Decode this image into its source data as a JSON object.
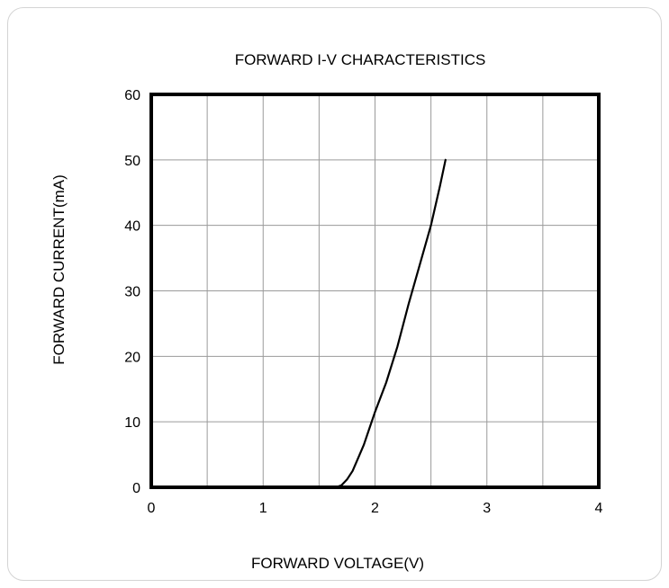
{
  "chart_data": {
    "type": "line",
    "title": "FORWARD I-V CHARACTERISTICS",
    "xlabel": "FORWARD VOLTAGE(V)",
    "ylabel": "FORWARD CURRENT(mA)",
    "xlim": [
      0,
      4
    ],
    "ylim": [
      0,
      60
    ],
    "x_ticks": [
      0,
      1,
      2,
      3,
      4
    ],
    "y_ticks": [
      0,
      10,
      20,
      30,
      40,
      50,
      60
    ],
    "grid": true,
    "grid_x_minor": 0.5,
    "series": [
      {
        "x": [
          1.65,
          1.7,
          1.75,
          1.8,
          1.85,
          1.9,
          1.95,
          2.0,
          2.1,
          2.2,
          2.3,
          2.4,
          2.5,
          2.58,
          2.63
        ],
        "y": [
          0,
          0.3,
          1.2,
          2.5,
          4.5,
          6.5,
          9.0,
          11.5,
          16.0,
          21.5,
          28.0,
          34.0,
          40.0,
          46.0,
          50.0
        ]
      }
    ]
  }
}
